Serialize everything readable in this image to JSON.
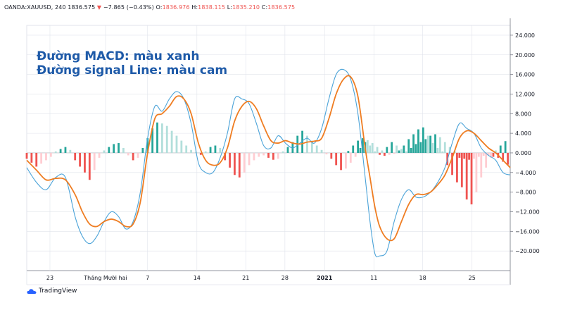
{
  "header": {
    "symbol": "OANDA:XAUUSD, 240",
    "price": "1836.575",
    "arrow": "▼",
    "change": "−7.865 (−0.43%)",
    "o_label": "O:",
    "o_val": "1836.976",
    "h_label": "H:",
    "h_val": "1838.115",
    "l_label": "L:",
    "l_val": "1835.210",
    "c_label": "C:",
    "c_val": "1836.575"
  },
  "annotation": {
    "line1": "Đường MACD: màu xanh",
    "line2": "Đường signal Line: màu cam"
  },
  "logo": {
    "text": "TradingView",
    "icon": "tradingview-cloud-icon"
  },
  "colors": {
    "macd": "#4ba3d8",
    "signal": "#ef7d22",
    "hist_pos_strong": "#26a69a",
    "hist_pos_weak": "#b2dfdb",
    "hist_neg_strong": "#ef5350",
    "hist_neg_weak": "#ffcdd2",
    "grid": "#e0e3eb",
    "annotation": "#1e5aa8"
  },
  "chart_data": {
    "type": "line",
    "ylim": [
      -24,
      26
    ],
    "xlim": [
      0,
      100
    ],
    "y_ticks": [
      "24.000",
      "20.000",
      "16.000",
      "12.000",
      "8.000",
      "4.000",
      "0.000",
      "−4.000",
      "−8.000",
      "−12.000",
      "−16.000",
      "−20.000"
    ],
    "y_tick_values": [
      24,
      20,
      16,
      12,
      8,
      4,
      0,
      -4,
      -8,
      -12,
      -16,
      -20
    ],
    "x_ticks": [
      {
        "label": "23",
        "x": 4.8
      },
      {
        "label": "Tháng Mười hai",
        "x": 16.3
      },
      {
        "label": "7",
        "x": 25.0
      },
      {
        "label": "14",
        "x": 35.2
      },
      {
        "label": "21",
        "x": 45.3
      },
      {
        "label": "28",
        "x": 53.4
      },
      {
        "label": "2021",
        "x": 61.6,
        "bold": true
      },
      {
        "label": "11",
        "x": 71.8
      },
      {
        "label": "18",
        "x": 81.9
      },
      {
        "label": "25",
        "x": 92.1
      }
    ],
    "series": [
      {
        "key": "macd",
        "x": [
          0,
          2,
          4,
          6,
          8,
          10,
          11.5,
          13,
          14.5,
          16,
          17.5,
          19,
          20.5,
          22,
          23.5,
          25,
          26.5,
          28,
          29.5,
          31,
          32.5,
          34,
          35.5,
          37,
          38.5,
          40,
          41.5,
          43,
          44.5,
          46,
          47.5,
          49,
          50.5,
          52,
          53.5,
          55,
          56.5,
          58,
          59.5,
          61,
          62.5,
          64,
          65.5,
          67,
          68.5,
          70,
          71,
          72,
          73,
          74.5,
          76,
          77.5,
          79,
          80.5,
          82,
          83.5,
          85,
          86.5,
          88,
          89.5,
          91,
          92.5,
          94,
          95.5,
          97,
          98.5,
          100
        ],
        "y": [
          -3,
          -6,
          -7.5,
          -5,
          -5,
          -13,
          -17,
          -18.5,
          -17,
          -14,
          -12,
          -13,
          -15.5,
          -14,
          -8,
          3,
          9.5,
          8.5,
          11,
          12.5,
          11,
          6,
          -2,
          -4,
          -4,
          -1,
          4,
          11,
          11,
          10,
          6,
          1.5,
          1,
          3.5,
          2,
          1,
          2,
          3,
          2,
          5,
          11,
          16,
          17,
          15,
          8,
          -5,
          -14,
          -20.5,
          -21,
          -20,
          -14,
          -9.5,
          -7.5,
          -9,
          -9,
          -8,
          -6,
          -3,
          2,
          6,
          5,
          4,
          1,
          -0.5,
          -1.5,
          -4,
          -4.5
        ]
      },
      {
        "key": "signal",
        "x": [
          0,
          2,
          4,
          6,
          8,
          10,
          11.5,
          13,
          14.5,
          16,
          17.5,
          19,
          20.5,
          22,
          23.5,
          25,
          26.5,
          28,
          29.5,
          31,
          32.5,
          34,
          35.5,
          37,
          38.5,
          40,
          41.5,
          43,
          44.5,
          46,
          47.5,
          49,
          50.5,
          52,
          53.5,
          55,
          56.5,
          58,
          59.5,
          61,
          62.5,
          64,
          65.5,
          67,
          68.5,
          70,
          71,
          72,
          73,
          74.5,
          76,
          77.5,
          79,
          80.5,
          82,
          83.5,
          85,
          86.5,
          88,
          89.5,
          91,
          92.5,
          94,
          95.5,
          97,
          98.5,
          100
        ],
        "y": [
          -1.5,
          -3.5,
          -5.5,
          -5.2,
          -5.5,
          -8.5,
          -12,
          -14.5,
          -15,
          -14,
          -13.5,
          -14,
          -15,
          -14.5,
          -10,
          0,
          7,
          8,
          9.5,
          11.5,
          11,
          8,
          2,
          -1.5,
          -2.5,
          -2,
          1,
          6.5,
          9.5,
          10.5,
          9,
          5.5,
          2.5,
          2,
          2.5,
          2,
          1.8,
          2.2,
          2.4,
          3,
          7,
          12,
          15,
          15.5,
          11.5,
          1,
          -5,
          -11,
          -15,
          -17.5,
          -17.5,
          -14,
          -10.5,
          -8.5,
          -8.5,
          -8,
          -6.5,
          -4.5,
          -1,
          3,
          4.5,
          4,
          2.5,
          1,
          0,
          -1.5,
          -3
        ]
      }
    ],
    "histogram": {
      "x": [
        0,
        1,
        2,
        3,
        4,
        5,
        6,
        7,
        8,
        9,
        10,
        11,
        12,
        13,
        14,
        15,
        16,
        17,
        18,
        19,
        20,
        21,
        22,
        23,
        24,
        25,
        26,
        27,
        28,
        29,
        30,
        31,
        32,
        33,
        34,
        35,
        36,
        37,
        38,
        39,
        40,
        41,
        42,
        43,
        44,
        45,
        46,
        47,
        48,
        49,
        50,
        51,
        52,
        53,
        54,
        55,
        56,
        57,
        58,
        59,
        60,
        61,
        62,
        63,
        64,
        65,
        66,
        67,
        68,
        69,
        70,
        71,
        72,
        73,
        74,
        75,
        76,
        77,
        78,
        79,
        80,
        81,
        82,
        83,
        84,
        85,
        86,
        87,
        88,
        89,
        90,
        91,
        92,
        93,
        94,
        95,
        96,
        97,
        98,
        99
      ],
      "y": [
        -1.2,
        -2,
        -2.8,
        -2.2,
        -1.5,
        -0.8,
        0.3,
        0.8,
        1.2,
        0.6,
        -1.5,
        -2.8,
        -4,
        -5.5,
        -3.5,
        -1,
        0.5,
        1.2,
        1.8,
        2,
        1,
        -0.5,
        -1.5,
        -1,
        1,
        3,
        5,
        6.2,
        6,
        5.5,
        4.5,
        3.5,
        2.5,
        1.5,
        0.6,
        0.2,
        -0.4,
        0.3,
        1.2,
        1.5,
        1,
        -1.5,
        -3,
        -4.5,
        -5,
        -4,
        -2.5,
        -1.5,
        -0.8,
        -0.5,
        -1,
        -1.4,
        -1.2,
        0.3,
        1.2,
        2.2,
        3.5,
        4.5,
        3.5,
        2.5,
        1.5,
        0.6,
        -0.3,
        -1.2,
        -2.5,
        -3.5,
        -3.2,
        -2,
        -0.8,
        1,
        2.2,
        1.5,
        0.3,
        -0.4,
        -0.6,
        -0.4,
        -0.2,
        0.5,
        1.5,
        2.8,
        3.8,
        4.8,
        5.2,
        3.5,
        2,
        1,
        0.3,
        -2.5,
        -4.5,
        -6,
        -7,
        -9.5,
        -10.5,
        -8,
        -5,
        -3,
        -1,
        0.5,
        1.5,
        2.4
      ]
    },
    "histogram_tail": {
      "x": [
        66,
        67,
        68,
        69,
        70,
        71,
        72,
        73,
        74,
        75,
        76,
        77,
        78,
        79,
        80,
        81,
        82,
        83,
        84,
        85,
        86,
        87,
        88,
        89,
        90,
        91,
        92,
        93,
        94,
        95,
        96,
        97,
        98,
        99
      ],
      "y": [
        0.4,
        1.5,
        2.5,
        3,
        2.6,
        2,
        1.2,
        0.5,
        1.2,
        2.2,
        1.5,
        0.8,
        0.3,
        1,
        1.8,
        2.2,
        2.8,
        3.5,
        3.8,
        3.2,
        2.2,
        1.2,
        0.4,
        -1,
        -1.2,
        -1.4,
        -1.2,
        -0.8,
        -0.6,
        -0.5,
        -0.8,
        -1,
        -1.8,
        -2.4
      ]
    }
  }
}
